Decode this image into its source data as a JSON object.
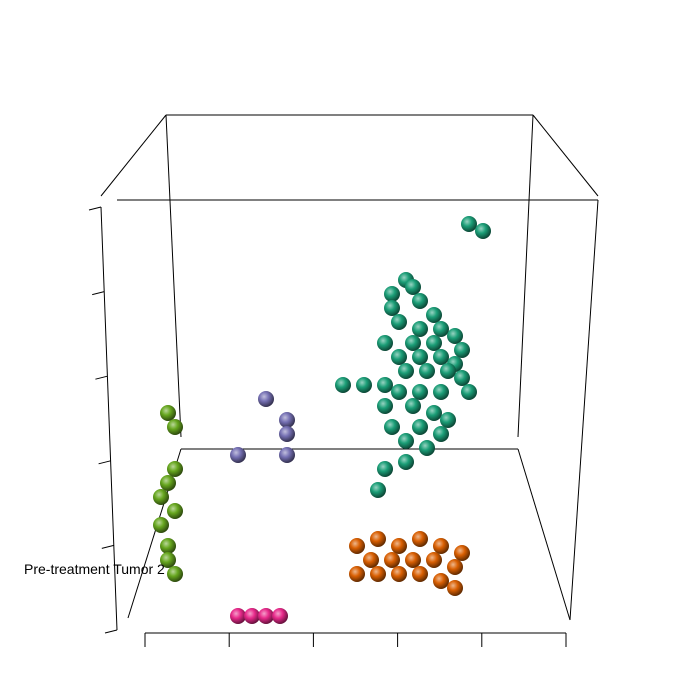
{
  "chart_data": {
    "type": "scatter",
    "dimensions": 3,
    "title": "",
    "xlabel": "",
    "ylabel": "",
    "zlabel": "",
    "axes": {
      "x_ticks": 6,
      "y_ticks": 6,
      "box": true,
      "grid": false
    },
    "annotations": [
      {
        "text": "Pre-treatment Tumor 2",
        "x": 0.05,
        "y": 0.18
      }
    ],
    "series": [
      {
        "color": "#1b9e77",
        "points": [
          [
            0.67,
            0.68
          ],
          [
            0.69,
            0.67
          ],
          [
            0.56,
            0.58
          ],
          [
            0.58,
            0.6
          ],
          [
            0.59,
            0.59
          ],
          [
            0.56,
            0.56
          ],
          [
            0.6,
            0.57
          ],
          [
            0.62,
            0.55
          ],
          [
            0.57,
            0.54
          ],
          [
            0.6,
            0.53
          ],
          [
            0.63,
            0.53
          ],
          [
            0.65,
            0.52
          ],
          [
            0.66,
            0.5
          ],
          [
            0.55,
            0.51
          ],
          [
            0.59,
            0.51
          ],
          [
            0.62,
            0.51
          ],
          [
            0.57,
            0.49
          ],
          [
            0.6,
            0.49
          ],
          [
            0.63,
            0.49
          ],
          [
            0.65,
            0.48
          ],
          [
            0.58,
            0.47
          ],
          [
            0.61,
            0.47
          ],
          [
            0.64,
            0.47
          ],
          [
            0.66,
            0.46
          ],
          [
            0.49,
            0.45
          ],
          [
            0.52,
            0.45
          ],
          [
            0.55,
            0.45
          ],
          [
            0.57,
            0.44
          ],
          [
            0.6,
            0.44
          ],
          [
            0.63,
            0.44
          ],
          [
            0.67,
            0.44
          ],
          [
            0.55,
            0.42
          ],
          [
            0.59,
            0.42
          ],
          [
            0.62,
            0.41
          ],
          [
            0.64,
            0.4
          ],
          [
            0.56,
            0.39
          ],
          [
            0.6,
            0.39
          ],
          [
            0.63,
            0.38
          ],
          [
            0.58,
            0.37
          ],
          [
            0.61,
            0.36
          ],
          [
            0.55,
            0.33
          ],
          [
            0.58,
            0.34
          ],
          [
            0.54,
            0.3
          ]
        ]
      },
      {
        "color": "#d95f02",
        "points": [
          [
            0.51,
            0.22
          ],
          [
            0.54,
            0.23
          ],
          [
            0.57,
            0.22
          ],
          [
            0.6,
            0.23
          ],
          [
            0.63,
            0.22
          ],
          [
            0.66,
            0.21
          ],
          [
            0.53,
            0.2
          ],
          [
            0.56,
            0.2
          ],
          [
            0.59,
            0.2
          ],
          [
            0.62,
            0.2
          ],
          [
            0.65,
            0.19
          ],
          [
            0.51,
            0.18
          ],
          [
            0.54,
            0.18
          ],
          [
            0.57,
            0.18
          ],
          [
            0.6,
            0.18
          ],
          [
            0.63,
            0.17
          ],
          [
            0.65,
            0.16
          ]
        ]
      },
      {
        "color": "#7570b3",
        "points": [
          [
            0.38,
            0.43
          ],
          [
            0.41,
            0.4
          ],
          [
            0.41,
            0.38
          ],
          [
            0.34,
            0.35
          ],
          [
            0.41,
            0.35
          ]
        ]
      },
      {
        "color": "#e7298a",
        "points": [
          [
            0.34,
            0.12
          ],
          [
            0.36,
            0.12
          ],
          [
            0.38,
            0.12
          ],
          [
            0.4,
            0.12
          ]
        ]
      },
      {
        "color": "#66a61e",
        "points": [
          [
            0.24,
            0.41
          ],
          [
            0.25,
            0.39
          ],
          [
            0.25,
            0.33
          ],
          [
            0.24,
            0.31
          ],
          [
            0.23,
            0.29
          ],
          [
            0.25,
            0.27
          ],
          [
            0.23,
            0.25
          ],
          [
            0.24,
            0.22
          ],
          [
            0.24,
            0.2
          ],
          [
            0.25,
            0.18
          ]
        ]
      }
    ]
  }
}
